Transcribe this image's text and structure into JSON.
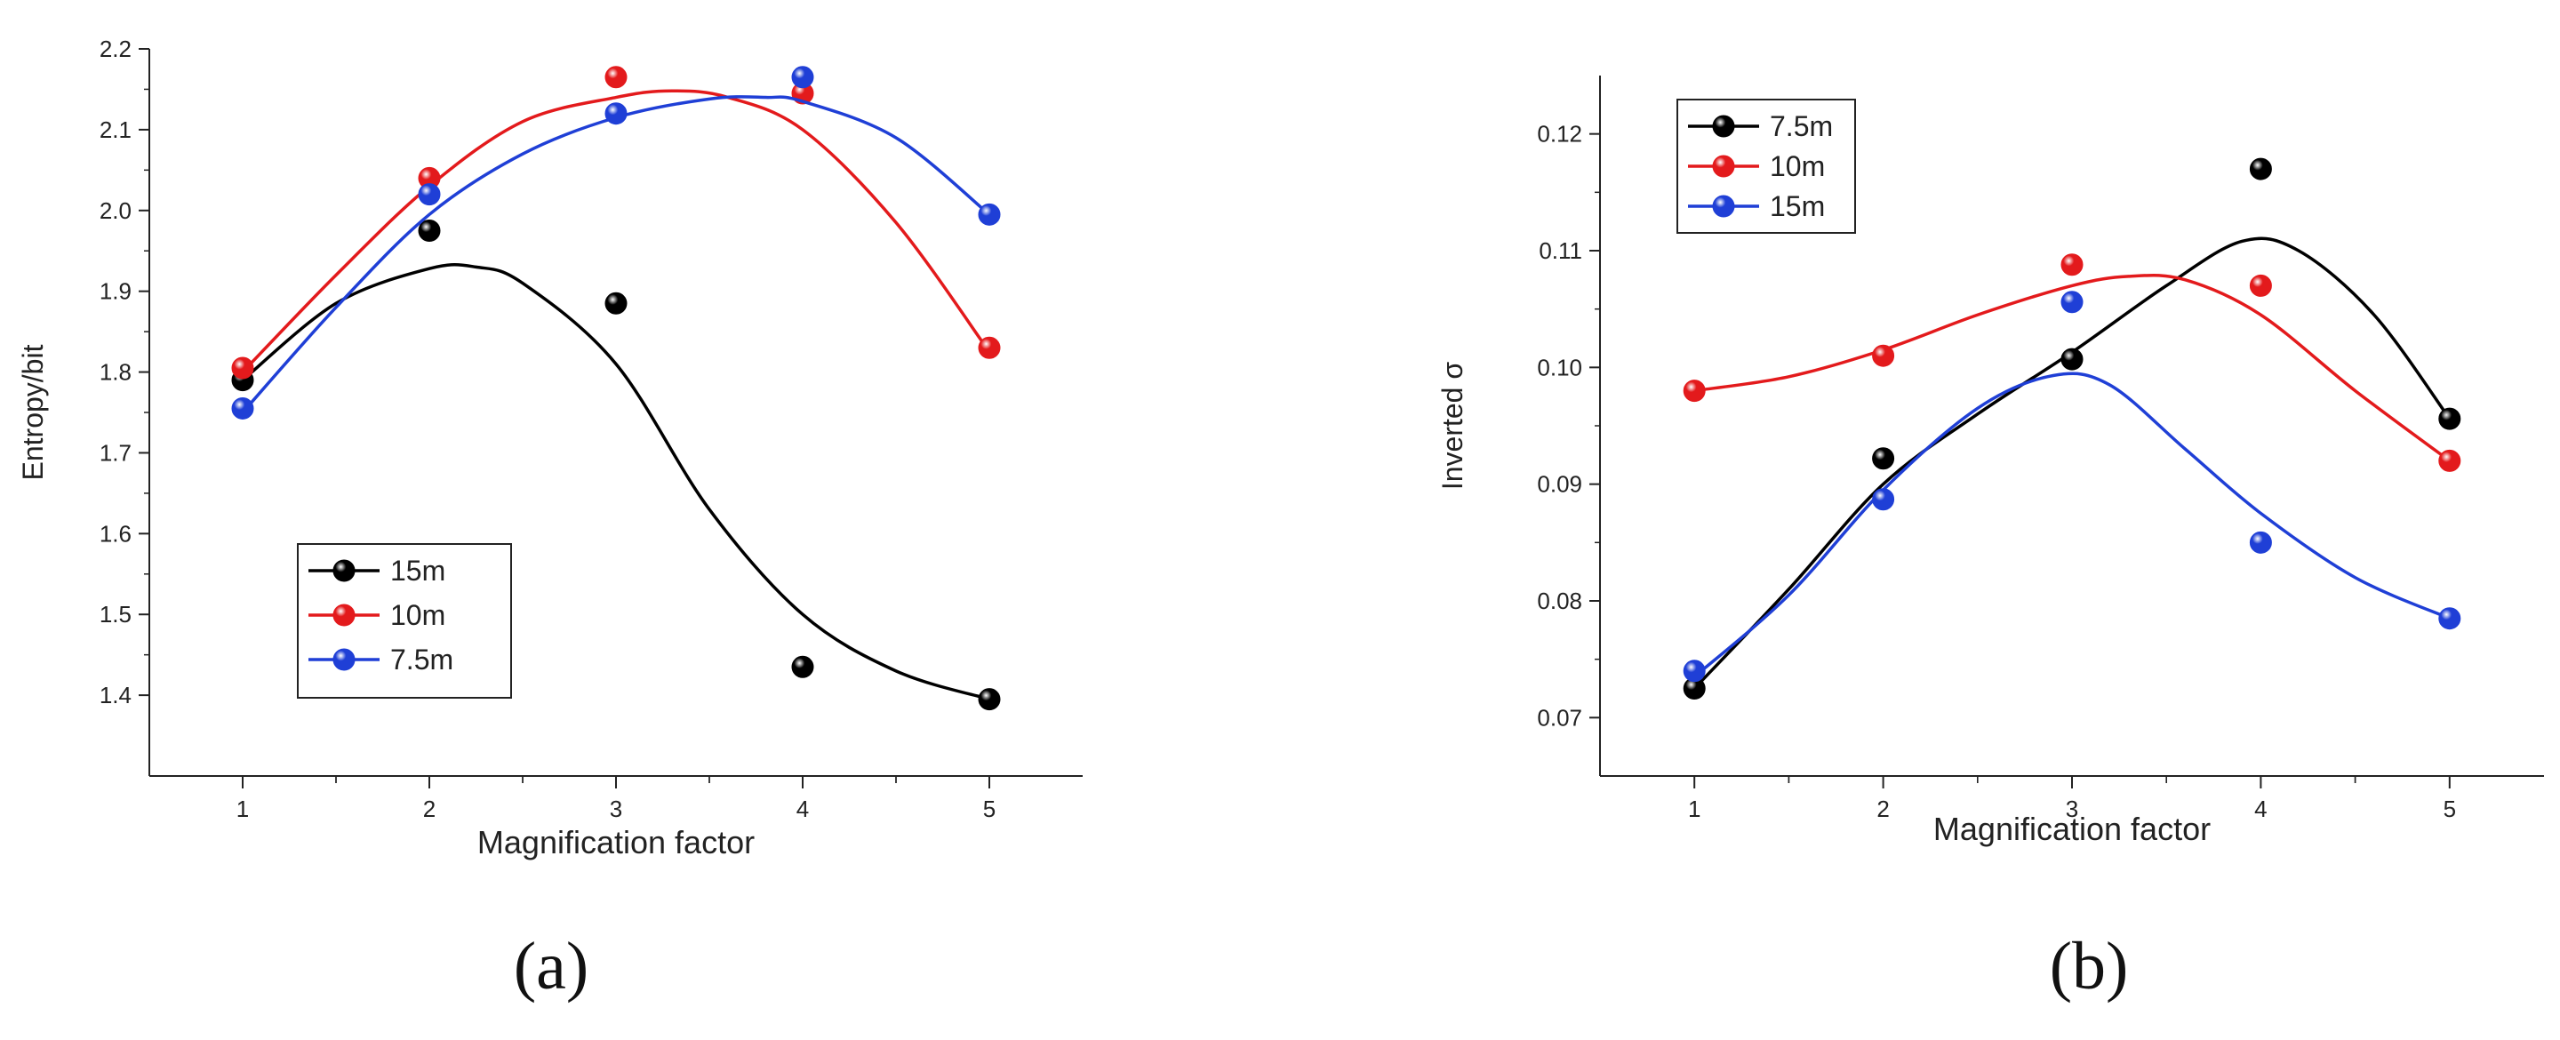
{
  "figure": {
    "panels": [
      "(a)",
      "(b)"
    ]
  },
  "chart_data": [
    {
      "type": "scatter",
      "panel": "(a)",
      "title": "",
      "xlabel": "Magnification factor",
      "ylabel": "Entropy/bit",
      "xlim": [
        0.5,
        5.5
      ],
      "ylim": [
        1.3,
        2.2
      ],
      "xticks": [
        1,
        2,
        3,
        4,
        5
      ],
      "yticks": [
        1.4,
        1.5,
        1.6,
        1.7,
        1.8,
        1.9,
        2.0,
        2.1,
        2.2
      ],
      "ytick_labels": [
        "1.4",
        "1.5",
        "1.6",
        "1.7",
        "1.8",
        "1.9",
        "2.0",
        "2.1",
        "2.2"
      ],
      "x": [
        1,
        2,
        3,
        4,
        5
      ],
      "fit": "smooth spline through points",
      "legend_position": "bottom-left",
      "series": [
        {
          "name": "15m",
          "color": "#000000",
          "values": [
            1.79,
            1.975,
            1.885,
            1.435,
            1.395
          ],
          "curve_x": [
            1,
            1.5,
            2,
            2.25,
            2.5,
            3,
            3.5,
            4,
            4.5,
            5
          ],
          "curve_y": [
            1.79,
            1.885,
            1.928,
            1.93,
            1.91,
            1.81,
            1.63,
            1.5,
            1.43,
            1.395
          ]
        },
        {
          "name": "10m",
          "color": "#e31a1c",
          "values": [
            1.805,
            2.04,
            2.165,
            2.145,
            1.83
          ],
          "curve_x": [
            1,
            1.5,
            2,
            2.5,
            3,
            3.3,
            3.6,
            4,
            4.5,
            5
          ],
          "curve_y": [
            1.8,
            1.92,
            2.03,
            2.11,
            2.14,
            2.148,
            2.14,
            2.1,
            1.985,
            1.825
          ]
        },
        {
          "name": "7.5m",
          "color": "#1f3fd6",
          "values": [
            1.755,
            2.02,
            2.12,
            2.165,
            1.995
          ],
          "curve_x": [
            1,
            1.5,
            2,
            2.5,
            3,
            3.5,
            3.8,
            4,
            4.5,
            5
          ],
          "curve_y": [
            1.75,
            1.88,
            1.995,
            2.07,
            2.115,
            2.138,
            2.14,
            2.135,
            2.09,
            1.995
          ]
        }
      ]
    },
    {
      "type": "scatter",
      "panel": "(b)",
      "title": "",
      "xlabel": "Magnification factor",
      "ylabel": "Inverted σ",
      "xlim": [
        0.5,
        5.5
      ],
      "ylim": [
        0.065,
        0.125
      ],
      "xticks": [
        1,
        2,
        3,
        4,
        5
      ],
      "yticks": [
        0.07,
        0.08,
        0.09,
        0.1,
        0.11,
        0.12
      ],
      "ytick_labels": [
        "0.07",
        "0.08",
        "0.09",
        "0.10",
        "0.11",
        "0.12"
      ],
      "x": [
        1,
        2,
        3,
        4,
        5
      ],
      "fit": "smooth spline through points",
      "legend_position": "top-left",
      "series": [
        {
          "name": "7.5m",
          "color": "#000000",
          "values": [
            0.0725,
            0.0922,
            0.1007,
            0.117,
            0.0956
          ],
          "curve_x": [
            1,
            1.5,
            2,
            2.5,
            3,
            3.5,
            3.9,
            4.2,
            4.6,
            5
          ],
          "curve_y": [
            0.0725,
            0.081,
            0.09,
            0.096,
            0.1013,
            0.107,
            0.1108,
            0.11,
            0.1045,
            0.0956
          ]
        },
        {
          "name": "10m",
          "color": "#e31a1c",
          "values": [
            0.098,
            0.101,
            0.1088,
            0.107,
            0.092
          ],
          "curve_x": [
            1,
            1.5,
            2,
            2.5,
            3,
            3.3,
            3.6,
            4,
            4.5,
            5
          ],
          "curve_y": [
            0.098,
            0.0992,
            0.1015,
            0.1045,
            0.107,
            0.1078,
            0.1075,
            0.1045,
            0.098,
            0.092
          ]
        },
        {
          "name": "15m",
          "color": "#1f3fd6",
          "values": [
            0.074,
            0.0887,
            0.1056,
            0.085,
            0.0785
          ],
          "curve_x": [
            1,
            1.5,
            2,
            2.5,
            2.9,
            3.2,
            3.6,
            4,
            4.5,
            5
          ],
          "curve_y": [
            0.0735,
            0.0805,
            0.0895,
            0.0965,
            0.0993,
            0.0985,
            0.093,
            0.0875,
            0.082,
            0.0785
          ]
        }
      ]
    }
  ]
}
